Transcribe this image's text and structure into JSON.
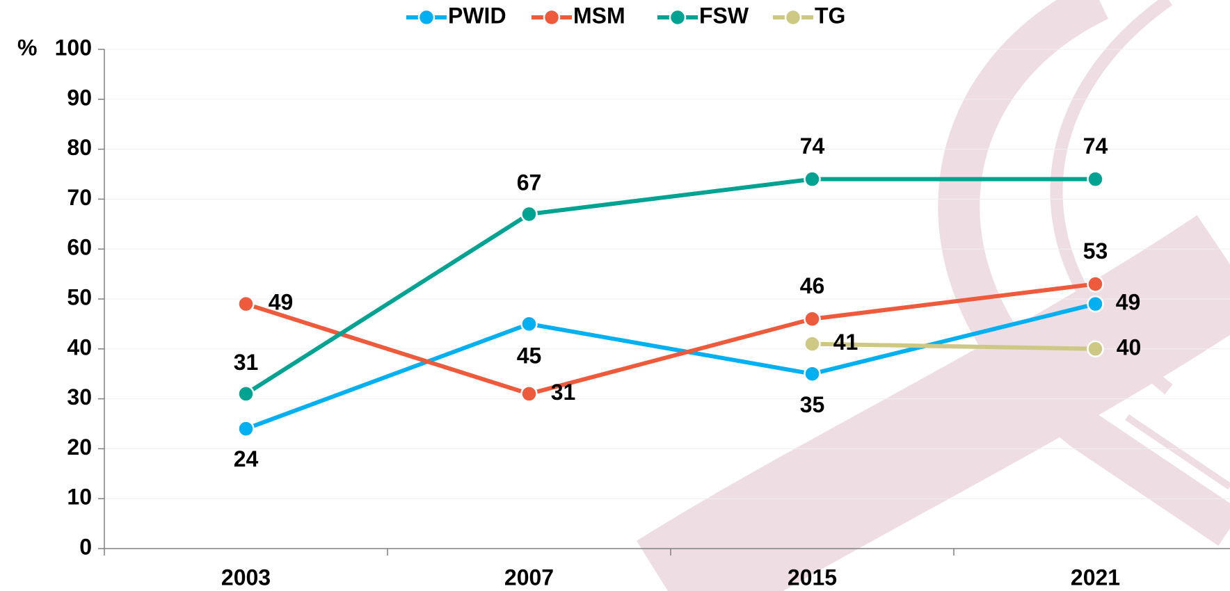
{
  "chart_data": {
    "type": "line",
    "y_label": "%",
    "categories": [
      "2003",
      "2007",
      "2015",
      "2021"
    ],
    "series": [
      {
        "name": "PWID",
        "color": "#00b0f0",
        "values": [
          24,
          45,
          35,
          49
        ]
      },
      {
        "name": "MSM",
        "color": "#ee5a3c",
        "values": [
          49,
          31,
          46,
          53
        ]
      },
      {
        "name": "FSW",
        "color": "#00a392",
        "values": [
          31,
          67,
          74,
          74
        ]
      },
      {
        "name": "TG",
        "color": "#cdc984",
        "values": [
          null,
          null,
          41,
          40
        ]
      }
    ],
    "ylim": [
      0,
      100
    ],
    "yticks": [
      0,
      10,
      20,
      30,
      40,
      50,
      60,
      70,
      80,
      90,
      100
    ],
    "grid": true
  }
}
